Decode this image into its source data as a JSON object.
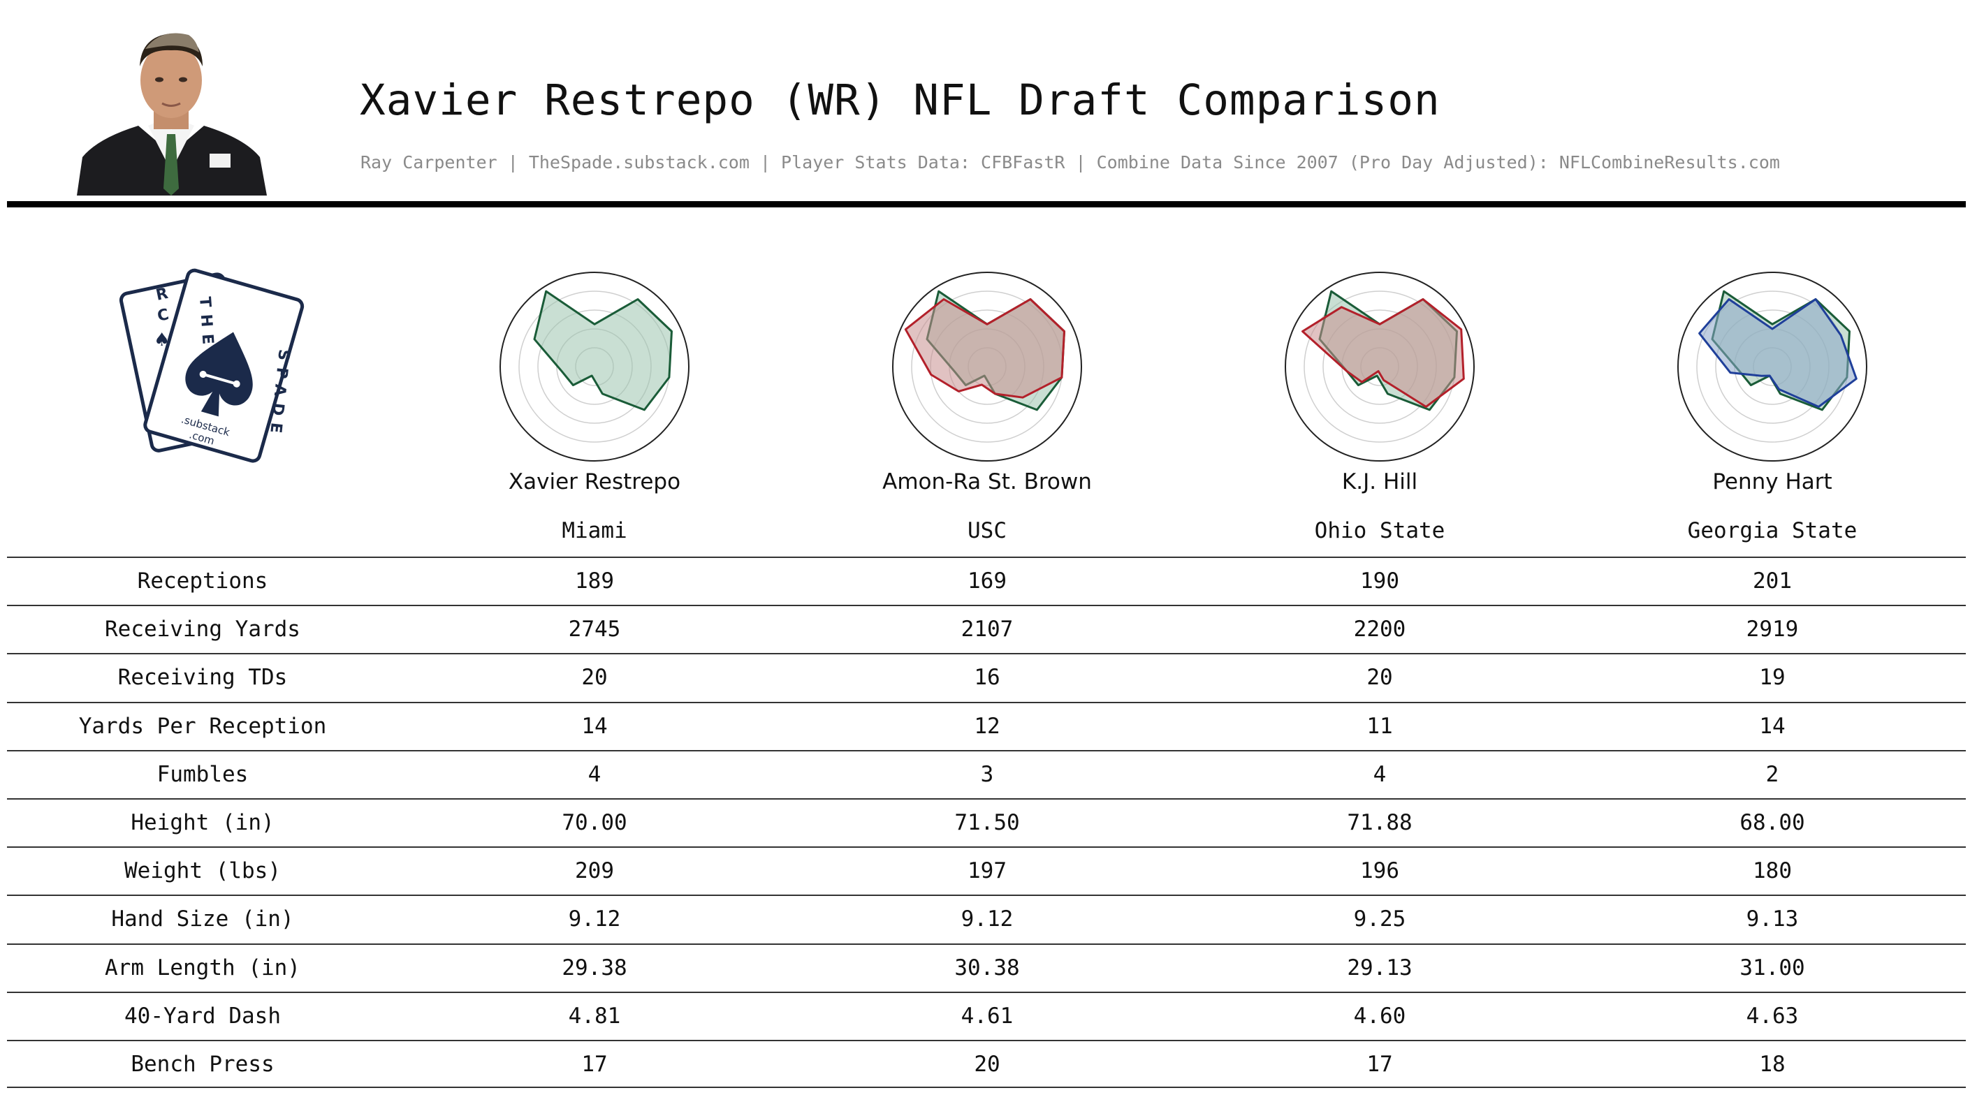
{
  "header": {
    "title": "Xavier Restrepo (WR) NFL Draft Comparison",
    "subtitle": "Ray Carpenter | TheSpade.substack.com | Player Stats Data: CFBFastR | Combine Data Since 2007 (Pro Day Adjusted): NFLCombineResults.com"
  },
  "logo": {
    "text_left": "RCHE",
    "text_right": "THE SPADE",
    "substack": ".substack",
    "com": ".com",
    "color": "#1b2a4a"
  },
  "colors": {
    "target": "#1a5c38",
    "target_fill": "#9cc5ae",
    "comps": [
      "#1a5c38",
      "#b3202a",
      "#b3202a",
      "#1f3f9a"
    ],
    "comp_fills": [
      "#9cc5ae",
      "#c98f8f",
      "#c98f8f",
      "#8aa6c8"
    ]
  },
  "players": [
    {
      "name": "Xavier Restrepo",
      "school": "Miami"
    },
    {
      "name": "Amon-Ra St. Brown",
      "school": "USC"
    },
    {
      "name": "K.J. Hill",
      "school": "Ohio State"
    },
    {
      "name": "Penny Hart",
      "school": "Georgia State"
    }
  ],
  "stats": {
    "labels": [
      "Receptions",
      "Receiving Yards",
      "Receiving TDs",
      "Yards Per Reception",
      "Fumbles",
      "Height (in)",
      "Weight (lbs)",
      "Hand Size (in)",
      "Arm Length (in)",
      "40-Yard Dash",
      "Bench Press"
    ],
    "values": [
      [
        "189",
        "169",
        "190",
        "201"
      ],
      [
        "2745",
        "2107",
        "2200",
        "2919"
      ],
      [
        "20",
        "16",
        "20",
        "19"
      ],
      [
        "14",
        "12",
        "11",
        "14"
      ],
      [
        "4",
        "3",
        "4",
        "2"
      ],
      [
        "70.00",
        "71.50",
        "71.88",
        "68.00"
      ],
      [
        "209",
        "197",
        "196",
        "180"
      ],
      [
        "9.12",
        "9.12",
        "9.25",
        "9.13"
      ],
      [
        "29.38",
        "30.38",
        "29.13",
        "31.00"
      ],
      [
        "4.81",
        "4.61",
        "4.60",
        "4.63"
      ],
      [
        "17",
        "20",
        "17",
        "18"
      ]
    ]
  },
  "chart_data": {
    "type": "radar",
    "axes_count": 11,
    "rlim": [
      0,
      1
    ],
    "rings": 5,
    "grid": true,
    "target": [
      0.45,
      0.85,
      0.9,
      0.8,
      0.7,
      0.3,
      0.1,
      0.3,
      0.35,
      0.7,
      0.95
    ],
    "series": [
      {
        "values": [
          0.45,
          0.85,
          0.9,
          0.8,
          0.5,
          0.3,
          0.2,
          0.4,
          0.6,
          0.95,
          0.85
        ]
      },
      {
        "values": [
          0.45,
          0.85,
          0.95,
          0.9,
          0.65,
          0.15,
          0.05,
          0.25,
          0.35,
          0.9,
          0.75
        ]
      },
      {
        "values": [
          0.4,
          0.85,
          0.8,
          0.9,
          0.65,
          0.25,
          0.1,
          0.15,
          0.45,
          0.85,
          0.85
        ]
      }
    ]
  }
}
